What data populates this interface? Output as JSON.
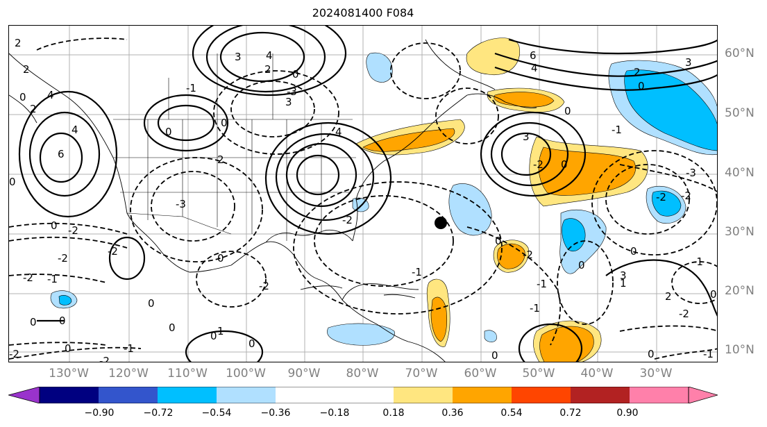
{
  "title": "2024081400 F084",
  "lat_labels": [
    "60°N",
    "50°N",
    "40°N",
    "30°N",
    "20°N",
    "10°N"
  ],
  "lon_labels": [
    "130°W",
    "120°W",
    "110°W",
    "100°W",
    "90°W",
    "80°W",
    "70°W",
    "60°W",
    "50°W",
    "40°W",
    "30°W"
  ],
  "colorbar": {
    "ticks": [
      "−0.90",
      "−0.72",
      "−0.54",
      "−0.36",
      "−0.18",
      "0.18",
      "0.36",
      "0.54",
      "0.72",
      "0.90"
    ],
    "colors": [
      "#9933cc",
      "#000080",
      "#3355cc",
      "#00bfff",
      "#b0e0ff",
      "#ffffff",
      "#ffe680",
      "#ffa500",
      "#ff4500",
      "#b22222",
      "#ff80aa"
    ]
  },
  "contour_labels": [
    "2",
    "3",
    "4",
    "3",
    "4",
    "2",
    "6",
    "4",
    "3",
    "2",
    "0",
    "-2",
    "0",
    "-2",
    "0",
    "-1",
    "-2",
    "3",
    "-1",
    "0",
    "0",
    "4",
    "6",
    "4",
    "0",
    "2",
    "2",
    "0",
    "2",
    "-3",
    "-2",
    "-3",
    "-2",
    "-2",
    "0",
    "-2",
    "-2",
    "0",
    "0",
    "-2",
    "0",
    "-1",
    "0",
    "-3",
    "0",
    "0",
    "-2",
    "-1",
    "-2",
    "-1",
    "0",
    "-1",
    "3",
    "-2",
    "0",
    "0",
    "0",
    "-1",
    "-1",
    "1",
    "2",
    "0",
    "0",
    "0",
    "-1",
    "1",
    "0",
    "-2",
    "0"
  ],
  "marker": "storm-center-dot"
}
